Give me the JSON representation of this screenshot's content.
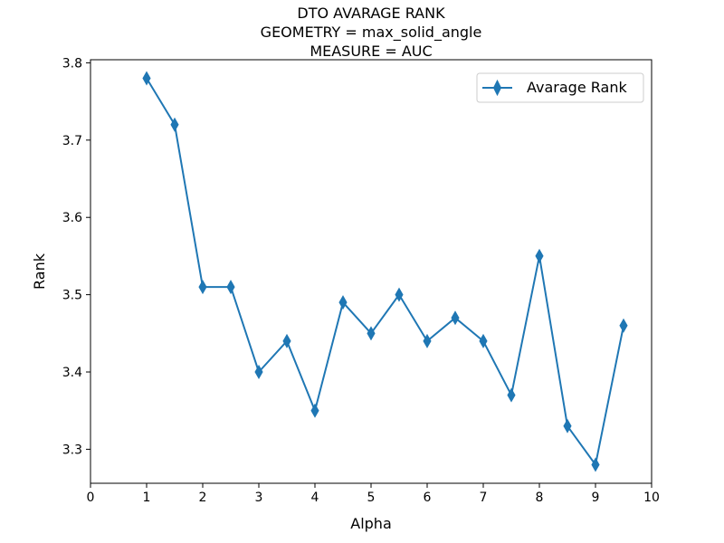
{
  "chart_data": {
    "type": "line",
    "title_lines": [
      "DTO AVARAGE RANK",
      "GEOMETRY = max_solid_angle",
      "MEASURE = AUC"
    ],
    "xlabel": "Alpha",
    "ylabel": "Rank",
    "xlim": [
      0,
      10
    ],
    "ylim": [
      3.256,
      3.804
    ],
    "xticks": [
      0,
      1,
      2,
      3,
      4,
      5,
      6,
      7,
      8,
      9,
      10
    ],
    "xtick_labels": [
      "0",
      "1",
      "2",
      "3",
      "4",
      "5",
      "6",
      "7",
      "8",
      "9",
      "10"
    ],
    "yticks": [
      3.3,
      3.4,
      3.5,
      3.6,
      3.7,
      3.8
    ],
    "ytick_labels": [
      "3.3",
      "3.4",
      "3.5",
      "3.6",
      "3.7",
      "3.8"
    ],
    "grid": false,
    "legend_position": "top-right",
    "marker": "thin-diamond",
    "color": "#1f77b4",
    "series": [
      {
        "name": "Avarage Rank",
        "x": [
          1,
          1.5,
          2,
          2.5,
          3,
          3.5,
          4,
          4.5,
          5,
          5.5,
          6,
          6.5,
          7,
          7.5,
          8,
          8.5,
          9,
          9.5
        ],
        "y": [
          3.78,
          3.72,
          3.51,
          3.51,
          3.4,
          3.44,
          3.35,
          3.49,
          3.45,
          3.5,
          3.44,
          3.47,
          3.44,
          3.37,
          3.55,
          3.33,
          3.28,
          3.46
        ]
      }
    ]
  }
}
